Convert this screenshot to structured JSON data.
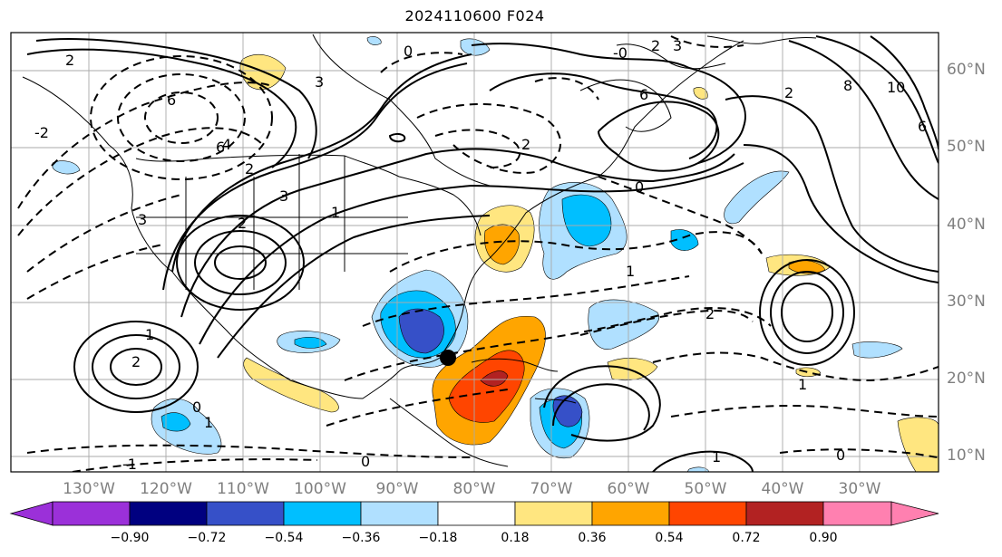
{
  "title": "2024110600 F024",
  "lat_labels": [
    "60°N",
    "50°N",
    "40°N",
    "30°N",
    "20°N",
    "10°N"
  ],
  "lon_labels": [
    "130°W",
    "120°W",
    "110°W",
    "100°W",
    "90°W",
    "80°W",
    "70°W",
    "60°W",
    "50°W",
    "40°W",
    "30°W"
  ],
  "colorbar": {
    "labels": [
      "−0.90",
      "−0.72",
      "−0.54",
      "−0.36",
      "−0.18",
      "0.18",
      "0.36",
      "0.54",
      "0.72",
      "0.90"
    ],
    "colors": [
      "#9b30d9",
      "#000080",
      "#3650c8",
      "#00bfff",
      "#b0e0ff",
      "#ffffff",
      "#ffe680",
      "#ffa500",
      "#ff4500",
      "#b22222",
      "#ff80b0"
    ],
    "under_color": "#9b30d9",
    "over_color": "#ff80b0"
  },
  "marker": {
    "lon": "84°W",
    "lat": "23°N"
  },
  "contour_labels": [
    "0",
    "2",
    "3",
    "6",
    "-0",
    "2",
    "3",
    "6",
    "2",
    "8",
    "10",
    "6",
    "2",
    "6",
    "4",
    "-2",
    "2",
    "3",
    "3",
    "1",
    "0",
    "2",
    "1",
    "2",
    "1",
    "2",
    "0",
    "1",
    "0",
    "-1",
    "0",
    "1",
    "1"
  ]
}
